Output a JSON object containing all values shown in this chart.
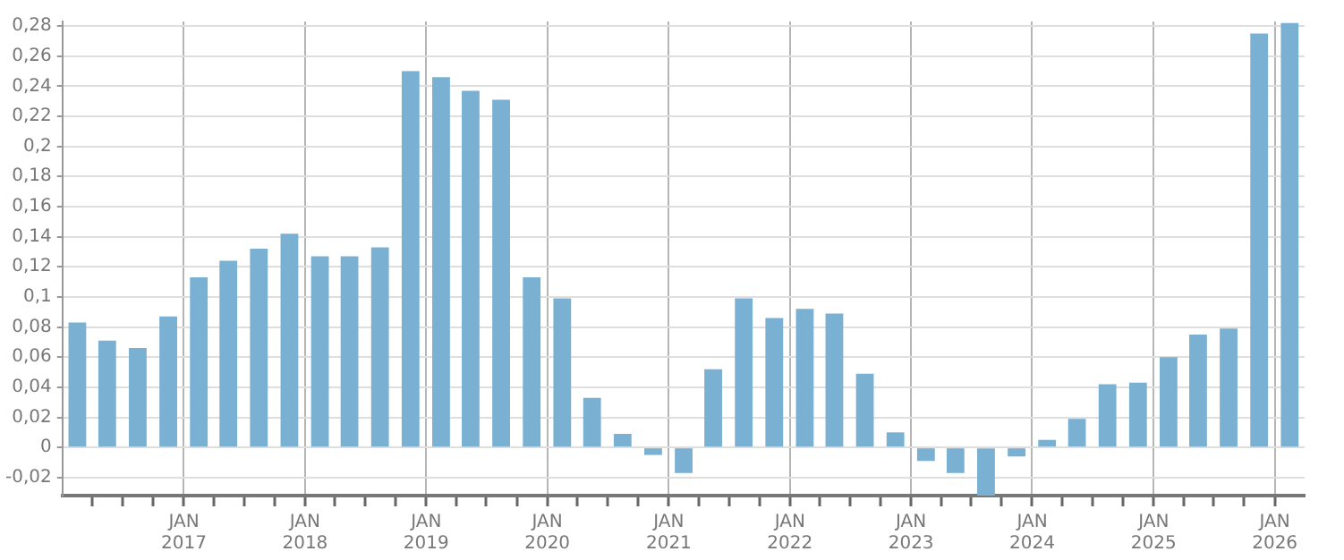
{
  "chart_data": {
    "type": "bar",
    "x": [
      "2016-02-15",
      "2016-05-15",
      "2016-08-15",
      "2016-11-15",
      "2017-02-15",
      "2017-05-15",
      "2017-08-15",
      "2017-11-15",
      "2018-02-15",
      "2018-05-15",
      "2018-08-15",
      "2018-11-15",
      "2019-02-15",
      "2019-05-15",
      "2019-08-15",
      "2019-11-15",
      "2020-02-15",
      "2020-05-15",
      "2020-08-15",
      "2020-11-15",
      "2021-02-15",
      "2021-05-15",
      "2021-08-15",
      "2021-11-15",
      "2022-02-15",
      "2022-05-15",
      "2022-08-15",
      "2022-11-15",
      "2023-02-15",
      "2023-05-15",
      "2023-08-15",
      "2023-11-15",
      "2024-02-15",
      "2024-05-15",
      "2024-08-15",
      "2024-11-15",
      "2025-02-15",
      "2025-05-15",
      "2025-08-15",
      "2025-11-15",
      "2026-02-15"
    ],
    "values": [
      0.083,
      0.071,
      0.066,
      0.087,
      0.113,
      0.124,
      0.132,
      0.142,
      0.127,
      0.127,
      0.133,
      0.25,
      0.246,
      0.237,
      0.231,
      0.113,
      0.099,
      0.033,
      0.009,
      -0.005,
      -0.017,
      0.052,
      0.099,
      0.086,
      0.092,
      0.089,
      0.049,
      0.01,
      -0.009,
      -0.017,
      -0.032,
      -0.006,
      0.005,
      0.019,
      0.042,
      0.043,
      0.06,
      0.075,
      0.079,
      0.275,
      0.282
    ],
    "color": "#7ab0d2",
    "xlim": [
      "2016-01",
      "2026-04"
    ],
    "xticks": [
      {
        "value": "2016-04",
        "label": null
      },
      {
        "value": "2016-07",
        "label": null
      },
      {
        "value": "2016-10",
        "label": null
      },
      {
        "value": "2017-01",
        "label": "JAN\n2017"
      },
      {
        "value": "2017-04",
        "label": null
      },
      {
        "value": "2017-07",
        "label": null
      },
      {
        "value": "2017-10",
        "label": null
      },
      {
        "value": "2018-01",
        "label": "JAN\n2018"
      },
      {
        "value": "2018-04",
        "label": null
      },
      {
        "value": "2018-07",
        "label": null
      },
      {
        "value": "2018-10",
        "label": null
      },
      {
        "value": "2019-01",
        "label": "JAN\n2019"
      },
      {
        "value": "2019-04",
        "label": null
      },
      {
        "value": "2019-07",
        "label": null
      },
      {
        "value": "2019-10",
        "label": null
      },
      {
        "value": "2020-01",
        "label": "JAN\n2020"
      },
      {
        "value": "2020-04",
        "label": null
      },
      {
        "value": "2020-07",
        "label": null
      },
      {
        "value": "2020-10",
        "label": null
      },
      {
        "value": "2021-01",
        "label": "JAN\n2021"
      },
      {
        "value": "2021-04",
        "label": null
      },
      {
        "value": "2021-07",
        "label": null
      },
      {
        "value": "2021-10",
        "label": null
      },
      {
        "value": "2022-01",
        "label": "JAN\n2022"
      },
      {
        "value": "2022-04",
        "label": null
      },
      {
        "value": "2022-07",
        "label": null
      },
      {
        "value": "2022-10",
        "label": null
      },
      {
        "value": "2023-01",
        "label": "JAN\n2023"
      },
      {
        "value": "2023-04",
        "label": null
      },
      {
        "value": "2023-07",
        "label": null
      },
      {
        "value": "2023-10",
        "label": null
      },
      {
        "value": "2024-01",
        "label": "JAN\n2024"
      },
      {
        "value": "2024-04",
        "label": null
      },
      {
        "value": "2024-07",
        "label": null
      },
      {
        "value": "2024-10",
        "label": null
      },
      {
        "value": "2025-01",
        "label": "JAN\n2025"
      },
      {
        "value": "2025-04",
        "label": null
      },
      {
        "value": "2025-07",
        "label": null
      },
      {
        "value": "2025-10",
        "label": null
      },
      {
        "value": "2026-01",
        "label": "JAN\n2026"
      }
    ],
    "ylim": [
      -0.032,
      0.283
    ],
    "yticks": [
      {
        "value": -0.02,
        "label": "-0,02"
      },
      {
        "value": 0,
        "label": "0"
      },
      {
        "value": 0.02,
        "label": "0,02"
      },
      {
        "value": 0.04,
        "label": "0,04"
      },
      {
        "value": 0.06,
        "label": "0,06"
      },
      {
        "value": 0.08,
        "label": "0,08"
      },
      {
        "value": 0.1,
        "label": "0,1"
      },
      {
        "value": 0.12,
        "label": "0,12"
      },
      {
        "value": 0.14,
        "label": "0,14"
      },
      {
        "value": 0.16,
        "label": "0,16"
      },
      {
        "value": 0.18,
        "label": "0,18"
      },
      {
        "value": 0.2,
        "label": "0,2"
      },
      {
        "value": 0.22,
        "label": "0,22"
      },
      {
        "value": 0.24,
        "label": "0,24"
      },
      {
        "value": 0.26,
        "label": "0,26"
      },
      {
        "value": 0.28,
        "label": "0,28"
      }
    ],
    "grid": true,
    "legend": false
  }
}
